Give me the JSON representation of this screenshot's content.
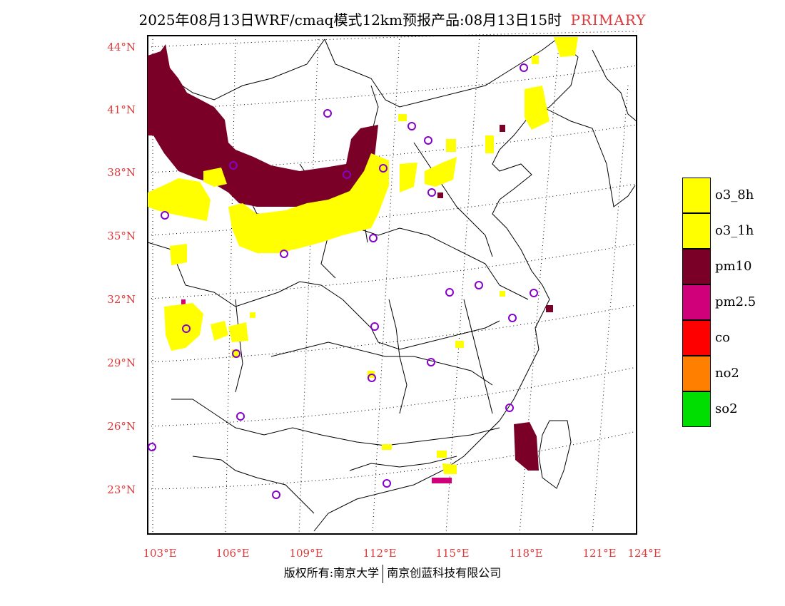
{
  "title": {
    "main": "2025年08月13日WRF/cmaq模式12km预报产品:08月13日15时",
    "tag": "PRIMARY"
  },
  "footer": {
    "left": "版权所有:南京大学",
    "right": "南京创蓝科技有限公司"
  },
  "axes": {
    "lat_labels": [
      "44°N",
      "41°N",
      "38°N",
      "35°N",
      "32°N",
      "29°N",
      "26°N",
      "23°N"
    ],
    "lon_labels": [
      "103°E",
      "106°E",
      "109°E",
      "112°E",
      "115°E",
      "118°E",
      "121°E",
      "124°E"
    ]
  },
  "legend": [
    {
      "label": "o3_8h",
      "color": "#ffff00"
    },
    {
      "label": "o3_1h",
      "color": "#ffff00"
    },
    {
      "label": "pm10",
      "color": "#7a0028"
    },
    {
      "label": "pm2.5",
      "color": "#d0007a"
    },
    {
      "label": "co",
      "color": "#ff0000"
    },
    {
      "label": "no2",
      "color": "#ff8000"
    },
    {
      "label": "so2",
      "color": "#00dd00"
    }
  ],
  "colors": {
    "axis_text": "#e03a3a",
    "station_marker": "#8800cc"
  }
}
